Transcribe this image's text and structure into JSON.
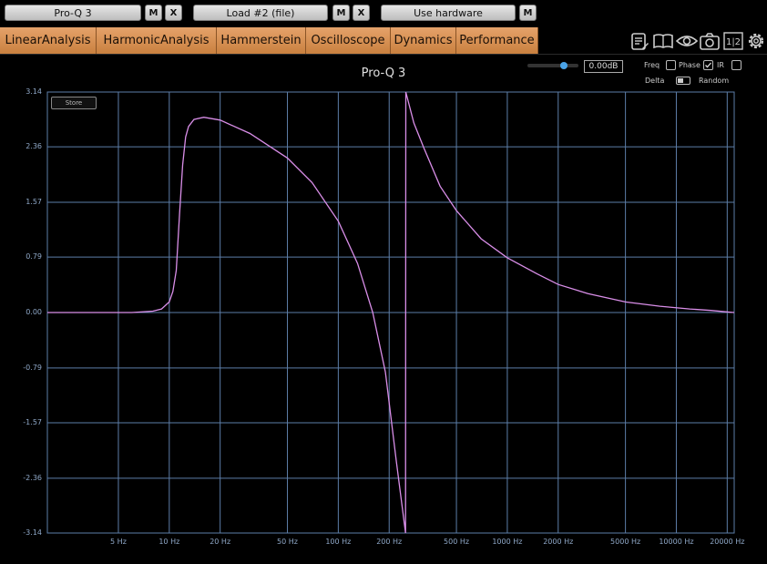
{
  "slots": {
    "slot1": {
      "label": "Pro-Q 3",
      "m": "M",
      "x": "X"
    },
    "slot2": {
      "label": "Load #2 (file)",
      "m": "M",
      "x": "X"
    },
    "slot3": {
      "label": "Use hardware",
      "m": "M"
    }
  },
  "tabs": [
    "LinearAnalysis",
    "HarmonicAnalysis",
    "Hammerstein",
    "Oscilloscope",
    "Dynamics",
    "Performance"
  ],
  "icons": [
    "notes-icon",
    "book-icon",
    "eye-icon",
    "camera-icon",
    "split-view-icon",
    "settings-icon"
  ],
  "icon_labels": {
    "split": "1|2"
  },
  "plot": {
    "title": "Pro-Q 3",
    "store_label": "Store",
    "level": "0.00dB",
    "level_slider": 0.72,
    "freq_label": "Freq",
    "phase_label": "Phase",
    "ir_label": "IR",
    "delta_label": "Delta",
    "random_label": "Random",
    "phase_checked": false,
    "ir_checked": true
  },
  "chart_data": {
    "type": "line",
    "title": "Pro-Q 3",
    "x_scale": "log",
    "y_ticks": [
      "3.14",
      "2.36",
      "1.57",
      "0.79",
      "0.00",
      "-0.79",
      "-1.57",
      "-2.36",
      "-3.14"
    ],
    "x_ticks": [
      "5 Hz",
      "10 Hz",
      "20 Hz",
      "50 Hz",
      "100 Hz",
      "200 Hz",
      "500 Hz",
      "1000 Hz",
      "2000 Hz",
      "5000 Hz",
      "10000 Hz",
      "20000 Hz"
    ],
    "x_tick_values": [
      5,
      10,
      20,
      50,
      100,
      200,
      500,
      1000,
      2000,
      5000,
      10000,
      20000
    ],
    "xlim": [
      1.9,
      22000
    ],
    "ylim": [
      -3.14,
      3.14
    ],
    "grid": true,
    "series": [
      {
        "color": "#d98ee8",
        "x": [
          1.9,
          4,
          6,
          8,
          9,
          10,
          10.5,
          11,
          11.5,
          12,
          12.5,
          13,
          14,
          16,
          20,
          30,
          50,
          70,
          100,
          130,
          160,
          190,
          220,
          250,
          251,
          280,
          320,
          400,
          500,
          700,
          1000,
          1500,
          2000,
          3000,
          5000,
          8000,
          12000,
          16000,
          22000
        ],
        "y": [
          0,
          0,
          0,
          0.02,
          0.05,
          0.15,
          0.3,
          0.6,
          1.4,
          2.1,
          2.5,
          2.65,
          2.75,
          2.78,
          2.74,
          2.55,
          2.2,
          1.85,
          1.3,
          0.7,
          0.0,
          -0.85,
          -2.1,
          -3.14,
          3.14,
          2.7,
          2.35,
          1.8,
          1.45,
          1.05,
          0.78,
          0.55,
          0.4,
          0.27,
          0.15,
          0.09,
          0.05,
          0.03,
          0.0
        ]
      }
    ]
  }
}
